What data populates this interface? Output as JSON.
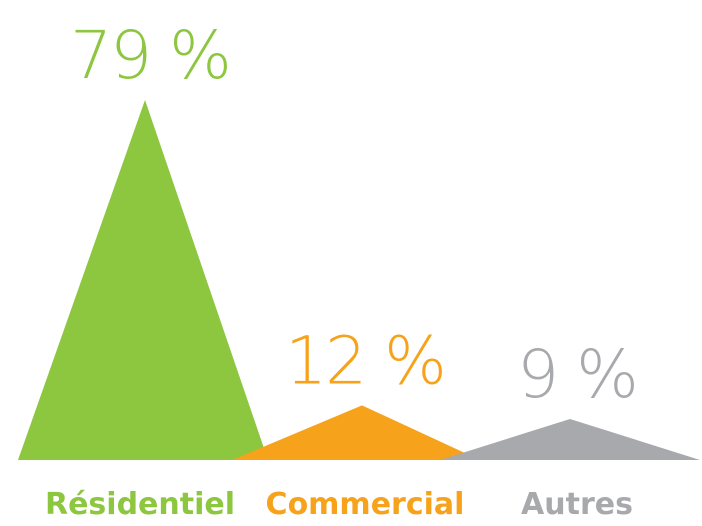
{
  "chart_data": {
    "type": "area",
    "categories": [
      "Résidentiel",
      "Commercial",
      "Autres"
    ],
    "values": [
      79,
      12,
      9
    ],
    "value_labels": [
      "79 %",
      "12 %",
      "9 %"
    ],
    "colors": [
      "#8dc63f",
      "#f7a21b",
      "#a7a9ac"
    ],
    "unit": "%",
    "title": "",
    "xlabel": "",
    "ylabel": ""
  }
}
